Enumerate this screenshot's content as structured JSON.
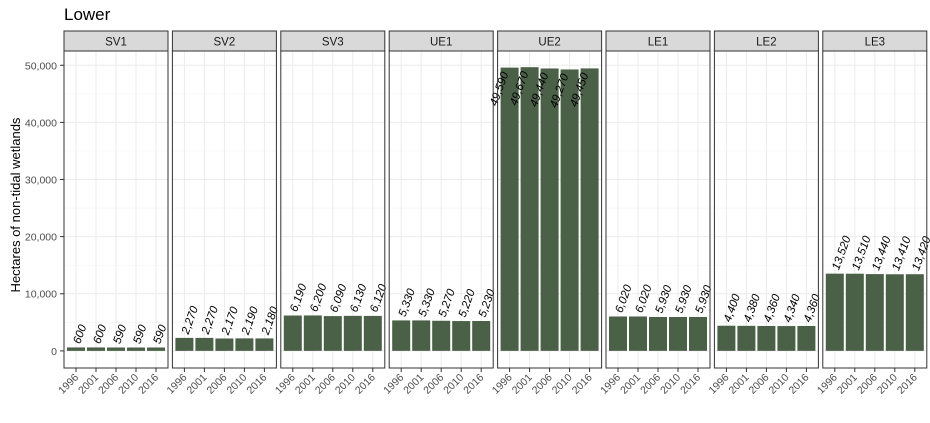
{
  "chart_data": {
    "type": "bar",
    "title": "Lower",
    "ylabel": "Hectares of non-tidal wetlands",
    "xlabel": "",
    "ylim": [
      -3000,
      52500
    ],
    "yticks": [
      0,
      10000,
      20000,
      30000,
      40000,
      50000
    ],
    "ytick_labels": [
      "0",
      "10,000",
      "20,000",
      "30,000",
      "40,000",
      "50,000"
    ],
    "categories": [
      "1996",
      "2001",
      "2006",
      "2010",
      "2016"
    ],
    "grid": true,
    "bar_color": "#4a6047",
    "facets": [
      {
        "name": "SV1",
        "values": [
          600,
          600,
          590,
          590,
          590
        ],
        "labels": [
          "600",
          "600",
          "590",
          "590",
          "590"
        ]
      },
      {
        "name": "SV2",
        "values": [
          2270,
          2270,
          2170,
          2190,
          2180
        ],
        "labels": [
          "2,270",
          "2,270",
          "2,170",
          "2,190",
          "2,180"
        ]
      },
      {
        "name": "SV3",
        "values": [
          6190,
          6200,
          6090,
          6130,
          6120
        ],
        "labels": [
          "6,190",
          "6,200",
          "6,090",
          "6,130",
          "6,120"
        ]
      },
      {
        "name": "UE1",
        "values": [
          5330,
          5330,
          5270,
          5220,
          5230
        ],
        "labels": [
          "5,330",
          "5,330",
          "5,270",
          "5,220",
          "5,230"
        ]
      },
      {
        "name": "UE2",
        "values": [
          49590,
          49670,
          49440,
          49270,
          49450
        ],
        "labels": [
          "49,590",
          "49,670",
          "49,440",
          "49,270",
          "49,450"
        ]
      },
      {
        "name": "LE1",
        "values": [
          6020,
          6020,
          5930,
          5930,
          5930
        ],
        "labels": [
          "6,020",
          "6,020",
          "5,930",
          "5,930",
          "5,930"
        ]
      },
      {
        "name": "LE2",
        "values": [
          4400,
          4380,
          4360,
          4340,
          4360
        ],
        "labels": [
          "4,400",
          "4,380",
          "4,360",
          "4,340",
          "4,360"
        ]
      },
      {
        "name": "LE3",
        "values": [
          13520,
          13510,
          13440,
          13410,
          13420
        ],
        "labels": [
          "13,520",
          "13,510",
          "13,440",
          "13,410",
          "13,420"
        ]
      }
    ]
  }
}
